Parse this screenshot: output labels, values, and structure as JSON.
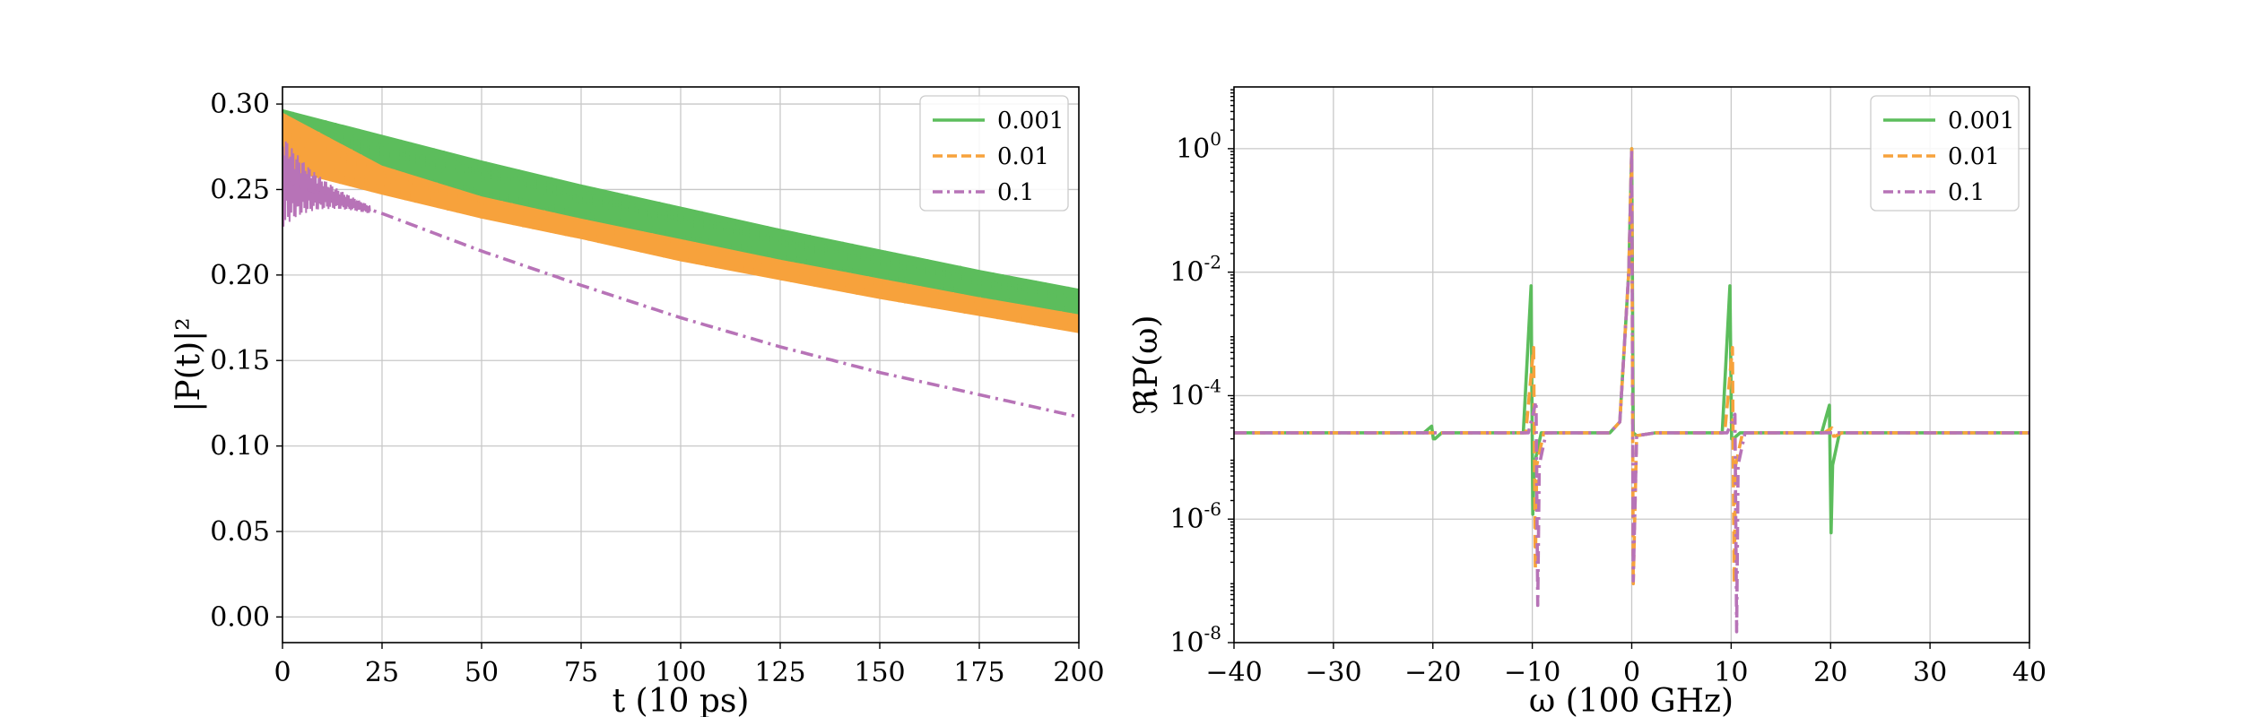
{
  "chart_data": [
    {
      "type": "line",
      "xlabel": "t (10 ps)",
      "ylabel": "|P(t)|²",
      "xlim": [
        0,
        200
      ],
      "ylim": [
        -0.015,
        0.31
      ],
      "xticks": [
        0,
        25,
        50,
        75,
        100,
        125,
        150,
        175,
        200
      ],
      "xtick_labels": [
        "0",
        "25",
        "50",
        "75",
        "100",
        "125",
        "150",
        "175",
        "200"
      ],
      "yticks": [
        0.0,
        0.05,
        0.1,
        0.15,
        0.2,
        0.25,
        0.3
      ],
      "ytick_labels": [
        "0.00",
        "0.05",
        "0.10",
        "0.15",
        "0.20",
        "0.25",
        "0.30"
      ],
      "grid": true,
      "legend_position": "top-right",
      "series": [
        {
          "name": "0.001",
          "color": "#5cbd5c",
          "style": "solid",
          "band": true,
          "x": [
            0,
            25,
            50,
            75,
            100,
            125,
            150,
            175,
            200
          ],
          "upper": [
            0.297,
            0.282,
            0.267,
            0.253,
            0.24,
            0.227,
            0.215,
            0.203,
            0.192
          ],
          "lower": [
            0.262,
            0.25,
            0.239,
            0.227,
            0.215,
            0.203,
            0.192,
            0.181,
            0.172
          ]
        },
        {
          "name": "0.01",
          "color": "#f7a23c",
          "style": "dashed",
          "band": true,
          "x": [
            0,
            25,
            50,
            75,
            100,
            125,
            150,
            175,
            200
          ],
          "upper": [
            0.295,
            0.264,
            0.246,
            0.233,
            0.221,
            0.209,
            0.198,
            0.187,
            0.177
          ],
          "lower": [
            0.262,
            0.247,
            0.233,
            0.221,
            0.208,
            0.197,
            0.186,
            0.176,
            0.166
          ]
        },
        {
          "name": "0.1",
          "color": "#b773b7",
          "style": "dashdot",
          "band": false,
          "x": [
            0,
            25,
            50,
            75,
            100,
            125,
            150,
            175,
            200
          ],
          "values": [
            0.255,
            0.236,
            0.214,
            0.194,
            0.175,
            0.158,
            0.143,
            0.13,
            0.117
          ],
          "initial_oscillation_range": [
            0.245,
            0.3
          ]
        }
      ]
    },
    {
      "type": "line",
      "xlabel": "ω (100 GHz)",
      "ylabel": "ℜP(ω)",
      "xlim": [
        -40,
        40
      ],
      "ylim": [
        1e-08,
        10
      ],
      "yscale": "log",
      "xticks": [
        -40,
        -30,
        -20,
        -10,
        0,
        10,
        20,
        30,
        40
      ],
      "xtick_labels": [
        "−40",
        "−30",
        "−20",
        "−10",
        "0",
        "10",
        "20",
        "30",
        "40"
      ],
      "yticks": [
        1e-08,
        1e-06,
        0.0001,
        0.01,
        1
      ],
      "ytick_bases": [
        "10",
        "10",
        "10",
        "10",
        "10"
      ],
      "ytick_exponents": [
        "-8",
        "-6",
        "-4",
        "-2",
        "0"
      ],
      "grid": true,
      "legend_position": "top-right",
      "baseline": 2.5e-05,
      "series": [
        {
          "name": "0.001",
          "color": "#5cbd5c",
          "style": "solid",
          "features": [
            {
              "x": -20,
              "max": 3.2e-05,
              "min": 2e-05
            },
            {
              "x": -10,
              "max": 0.006,
              "min": 1.2e-06
            },
            {
              "x": 0,
              "max": 1.0,
              "min": 2.5e-05
            },
            {
              "x": 10,
              "max": 0.006,
              "min": 2e-05
            },
            {
              "x": 20,
              "max": 7e-05,
              "min": 6e-07
            }
          ]
        },
        {
          "name": "0.01",
          "color": "#f7a23c",
          "style": "dashed",
          "features": [
            {
              "x": -10,
              "max": 0.0006,
              "min": 1.5e-07
            },
            {
              "x": 0,
              "max": 1.0,
              "min": 9e-08
            },
            {
              "x": 10,
              "max": 0.0006,
              "min": 9e-08
            },
            {
              "x": 20,
              "max": 3e-05,
              "min": 2.2e-05
            }
          ]
        },
        {
          "name": "0.1",
          "color": "#b773b7",
          "style": "dashdot",
          "features": [
            {
              "x": -10,
              "max": 8e-05,
              "min": 4e-08
            },
            {
              "x": 0,
              "max": 1.0,
              "min": 1e-07
            },
            {
              "x": 10,
              "max": 5e-05,
              "min": 1.5e-08
            }
          ]
        }
      ]
    }
  ]
}
